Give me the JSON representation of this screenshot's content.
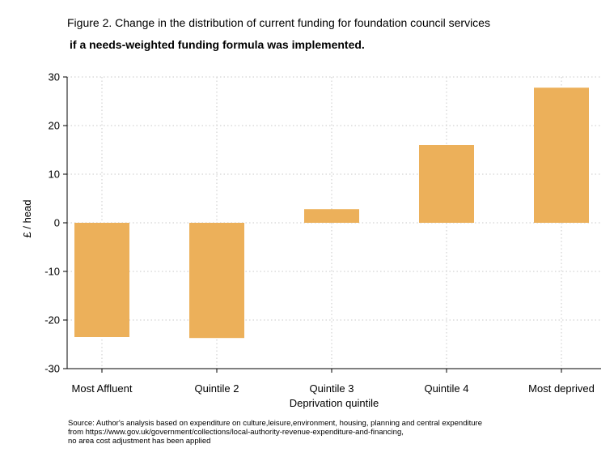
{
  "title": "Figure 2. Change in the distribution of current funding for foundation council services",
  "subtitle": "if a needs-weighted funding formula was implemented.",
  "source_lines": [
    "Source: Author's analysis based on expenditure on culture,leisure,environment, housing, planning and central expenditure",
    "from https://www.gov.uk/government/collections/local-authority-revenue-expenditure-and-financing,",
    "no area cost adjustment has been applied"
  ],
  "colors": {
    "bar": "#ECB05A",
    "grid": "#C8C8C8",
    "axis": "#000000"
  },
  "chart_data": {
    "type": "bar",
    "categories": [
      "Most Affluent",
      "Quintile 2",
      "Quintile 3",
      "Quintile 4",
      "Most deprived"
    ],
    "values": [
      -23.5,
      -23.7,
      2.8,
      16.0,
      27.8
    ],
    "xlabel": "Deprivation quintile",
    "ylabel": "£ / head",
    "ylim": [
      -30,
      30
    ],
    "yticks": [
      30,
      20,
      10,
      0,
      -10,
      -20,
      -30
    ],
    "yticklabels": [
      "30",
      "20",
      "10",
      "0",
      "-10",
      "-20",
      "-30"
    ],
    "grid": true
  }
}
